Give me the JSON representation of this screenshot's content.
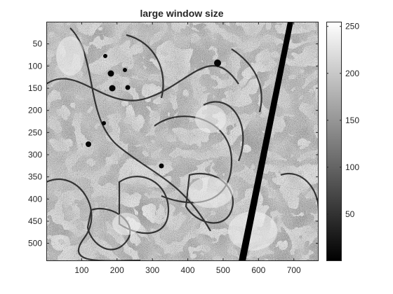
{
  "figure": {
    "title": "large window size",
    "image_description_kind": "grayscale electron micrograph texture (synthetic recreation)"
  },
  "axes": {
    "x_ticks": [
      "100",
      "200",
      "300",
      "400",
      "500",
      "600",
      "700"
    ],
    "y_ticks": [
      "50",
      "100",
      "150",
      "200",
      "250",
      "300",
      "350",
      "400",
      "450",
      "500"
    ],
    "x_range": [
      0,
      770
    ],
    "y_range": [
      0,
      540
    ]
  },
  "colorbar": {
    "ticks": [
      "50",
      "100",
      "150",
      "200",
      "250"
    ],
    "range": [
      0,
      255
    ],
    "colormap": "gray"
  },
  "colors": {
    "axis": "#262626",
    "background": "#ffffff"
  }
}
